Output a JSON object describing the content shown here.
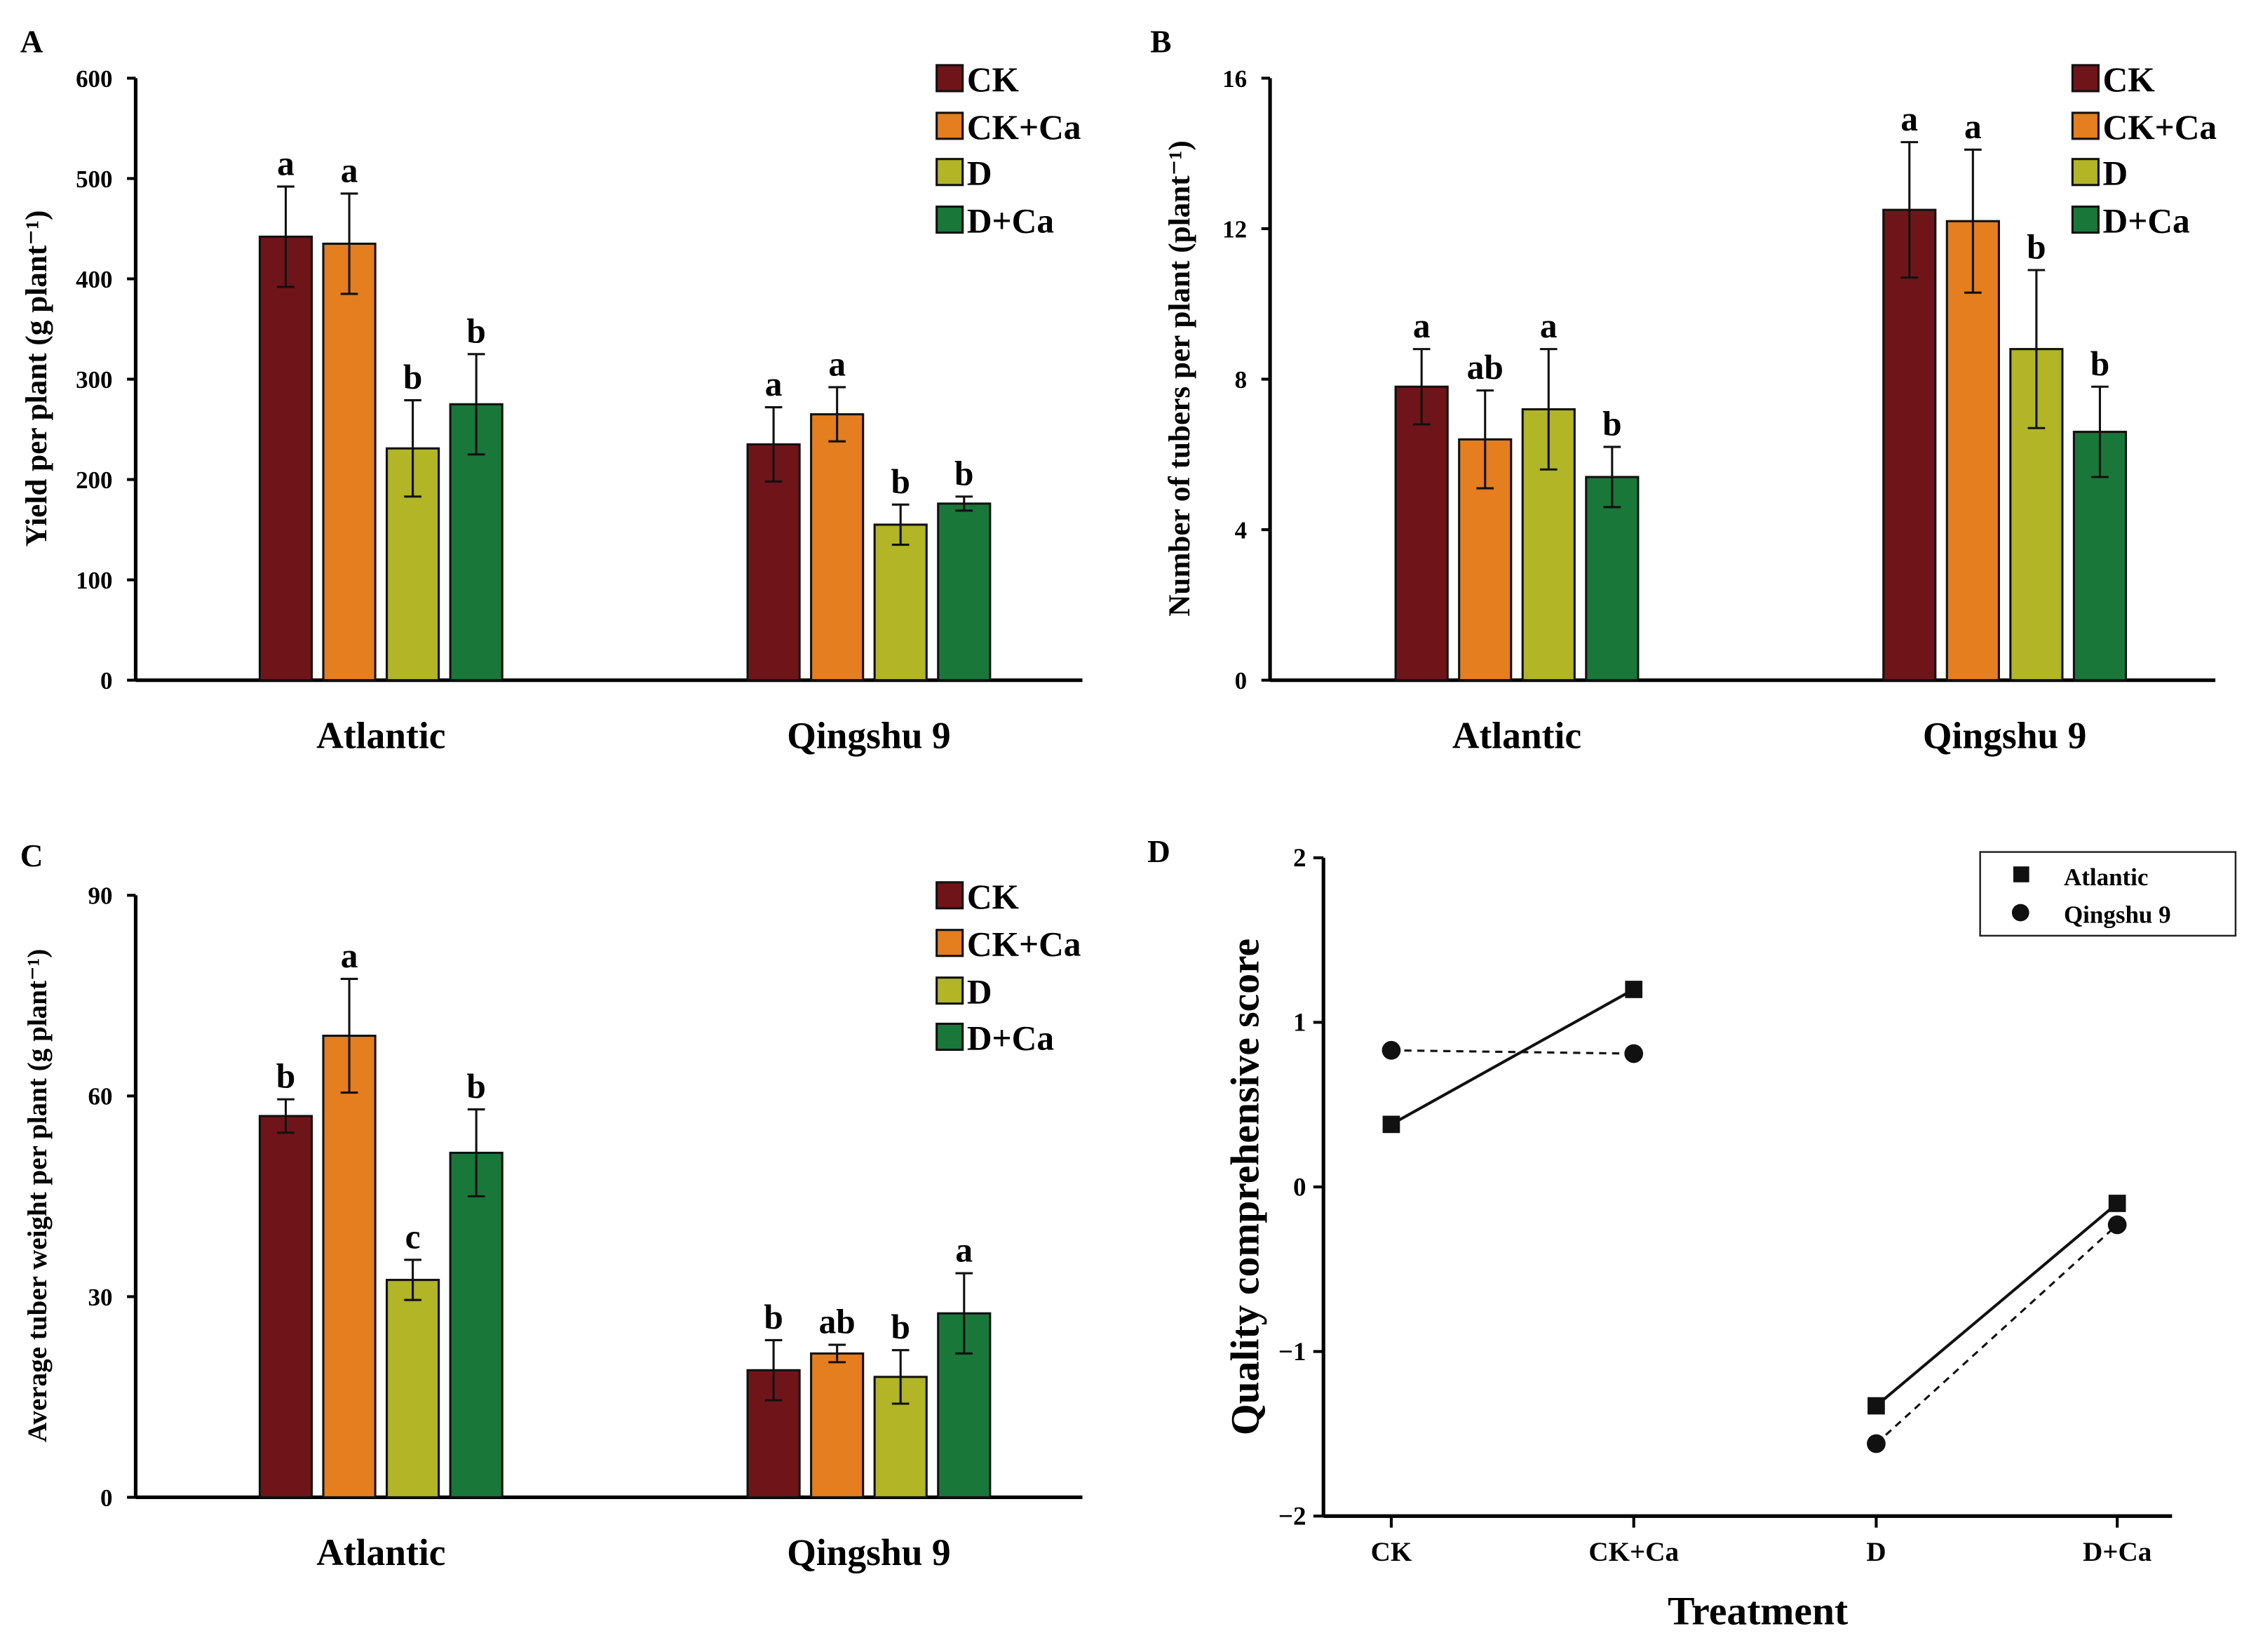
{
  "chart_data": [
    {
      "panel": "A",
      "type": "bar",
      "ylabel": "Yield per plant (g plant⁻¹)",
      "ylim": [
        0,
        600
      ],
      "yticks": [
        0,
        100,
        200,
        300,
        400,
        500,
        600
      ],
      "categories": [
        "Atlantic",
        "Qingshu 9"
      ],
      "series": [
        {
          "name": "CK",
          "color": "#6f1519",
          "values": [
            442,
            235
          ],
          "errors": [
            50,
            37
          ],
          "letters": [
            "a",
            "a"
          ]
        },
        {
          "name": "CK+Ca",
          "color": "#e57e1e",
          "values": [
            435,
            265
          ],
          "errors": [
            50,
            27
          ],
          "letters": [
            "a",
            "a"
          ]
        },
        {
          "name": "D",
          "color": "#b1b526",
          "values": [
            231,
            155
          ],
          "errors": [
            48,
            20
          ],
          "letters": [
            "b",
            "b"
          ]
        },
        {
          "name": "D+Ca",
          "color": "#1a773a",
          "values": [
            275,
            176
          ],
          "errors": [
            50,
            7
          ],
          "letters": [
            "b",
            "b"
          ]
        }
      ],
      "legend": "top-right"
    },
    {
      "panel": "B",
      "type": "bar",
      "ylabel": "Number of tubers per plant (plant⁻¹)",
      "ylim": [
        0,
        16
      ],
      "yticks": [
        0,
        4,
        8,
        12,
        16
      ],
      "categories": [
        "Atlantic",
        "Qingshu 9"
      ],
      "series": [
        {
          "name": "CK",
          "color": "#6f1519",
          "values": [
            7.8,
            12.5
          ],
          "errors": [
            1.0,
            1.8
          ],
          "letters": [
            "a",
            "a"
          ]
        },
        {
          "name": "CK+Ca",
          "color": "#e57e1e",
          "values": [
            6.4,
            12.2
          ],
          "errors": [
            1.3,
            1.9
          ],
          "letters": [
            "ab",
            "a"
          ]
        },
        {
          "name": "D",
          "color": "#b1b526",
          "values": [
            7.2,
            8.8
          ],
          "errors": [
            1.6,
            2.1
          ],
          "letters": [
            "a",
            "b"
          ]
        },
        {
          "name": "D+Ca",
          "color": "#1a773a",
          "values": [
            5.4,
            6.6
          ],
          "errors": [
            0.8,
            1.2
          ],
          "letters": [
            "b",
            "b"
          ]
        }
      ],
      "legend": "top-right"
    },
    {
      "panel": "C",
      "type": "bar",
      "ylabel": "Average tuber weight per plant (g plant⁻¹)",
      "ylim": [
        0,
        90
      ],
      "yticks": [
        0,
        30,
        60,
        90
      ],
      "categories": [
        "Atlantic",
        "Qingshu 9"
      ],
      "series": [
        {
          "name": "CK",
          "color": "#6f1519",
          "values": [
            57,
            19
          ],
          "errors": [
            2.5,
            4.5
          ],
          "letters": [
            "b",
            "b"
          ]
        },
        {
          "name": "CK+Ca",
          "color": "#e57e1e",
          "values": [
            69,
            21.5
          ],
          "errors": [
            8.5,
            1.3
          ],
          "letters": [
            "a",
            "ab"
          ]
        },
        {
          "name": "D",
          "color": "#b1b526",
          "values": [
            32.5,
            18
          ],
          "errors": [
            3,
            4
          ],
          "letters": [
            "c",
            "b"
          ]
        },
        {
          "name": "D+Ca",
          "color": "#1a773a",
          "values": [
            51.5,
            27.5
          ],
          "errors": [
            6.5,
            6
          ],
          "letters": [
            "b",
            "a"
          ]
        }
      ],
      "legend": "top-right"
    },
    {
      "panel": "D",
      "type": "line",
      "xlabel": "Treatment",
      "ylabel": "Quality comprehensive score",
      "ylim": [
        -2,
        2
      ],
      "yticks": [
        -2,
        -1,
        0,
        1,
        2
      ],
      "ytick_labels": [
        "−2",
        "−1",
        "0",
        "1",
        "2"
      ],
      "categories": [
        "CK",
        "CK+Ca",
        "D",
        "D+Ca"
      ],
      "series": [
        {
          "name": "Atlantic",
          "marker": "square",
          "line": "solid",
          "values": [
            0.38,
            1.2,
            -1.33,
            -0.1
          ]
        },
        {
          "name": "Qingshu 9",
          "marker": "circle",
          "line": "dashed",
          "values": [
            0.83,
            0.81,
            -1.56,
            -0.23
          ]
        }
      ],
      "segments": [
        [
          0,
          1
        ],
        [
          2,
          3
        ]
      ],
      "legend": "top-right"
    }
  ]
}
